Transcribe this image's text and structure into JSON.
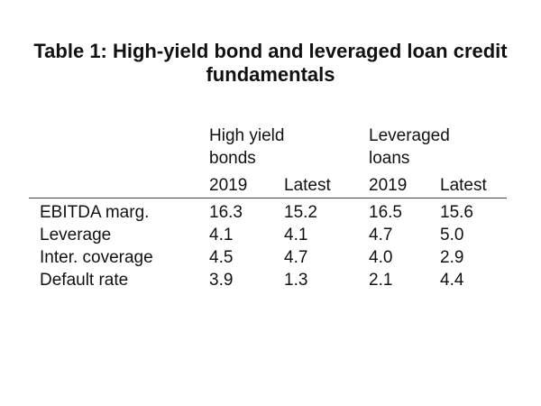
{
  "title": {
    "line1": "Table 1: High-yield bond and leveraged loan credit",
    "line2": "fundamentals"
  },
  "chart_data": {
    "type": "table",
    "group_headers": [
      {
        "line1": "High yield",
        "line2": "bonds"
      },
      {
        "line1": "Leveraged",
        "line2": "loans"
      }
    ],
    "column_headers": [
      "2019",
      "Latest",
      "2019",
      "Latest"
    ],
    "rows": [
      {
        "label": "EBITDA marg.",
        "values": [
          "16.3",
          "15.2",
          "16.5",
          "15.6"
        ]
      },
      {
        "label": "Leverage",
        "values": [
          "4.1",
          "4.1",
          "4.7",
          "5.0"
        ]
      },
      {
        "label": "Inter. coverage",
        "values": [
          "4.5",
          "4.7",
          "4.0",
          "2.9"
        ]
      },
      {
        "label": "Default rate",
        "values": [
          "3.9",
          "1.3",
          "2.1",
          "4.4"
        ]
      }
    ]
  }
}
